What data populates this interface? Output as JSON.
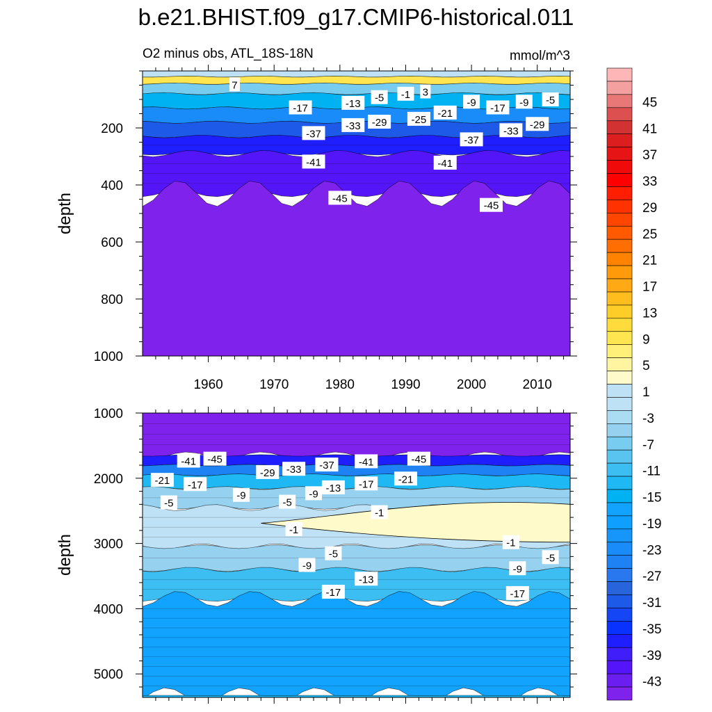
{
  "title": "b.e21.BHIST.f09_g17.CMIP6-historical.011",
  "chart_data": [
    {
      "type": "contour",
      "panel": "top",
      "subtitle_left": "O2 minus obs, ATL_18S-18N",
      "subtitle_right": "mmol/m^3",
      "ylabel": "depth",
      "xlim": [
        1950,
        2015
      ],
      "ylim": [
        0,
        1000
      ],
      "y_inverted": true,
      "x_ticks": [
        1960,
        1970,
        1980,
        1990,
        2000,
        2010
      ],
      "y_ticks": [
        200,
        400,
        600,
        800,
        1000
      ],
      "bands": [
        {
          "top": 0,
          "bottom": 20,
          "value": -3
        },
        {
          "top": 20,
          "bottom": 45,
          "value": 7
        },
        {
          "top": 45,
          "bottom": 80,
          "value": -9
        },
        {
          "top": 80,
          "bottom": 130,
          "value": -17
        },
        {
          "top": 130,
          "bottom": 180,
          "value": -25
        },
        {
          "top": 180,
          "bottom": 230,
          "value": -33
        },
        {
          "top": 230,
          "bottom": 290,
          "value": -39
        },
        {
          "top": 290,
          "bottom": 430,
          "value": -43
        },
        {
          "top": 430,
          "bottom": 1000,
          "value": -47
        }
      ],
      "contour_labels": [
        {
          "text": "7",
          "x": 1964,
          "y": 47
        },
        {
          "text": "-17",
          "x": 1974,
          "y": 128
        },
        {
          "text": "-13",
          "x": 1982,
          "y": 112
        },
        {
          "text": "-5",
          "x": 1986,
          "y": 92
        },
        {
          "text": "-1",
          "x": 1990,
          "y": 80
        },
        {
          "text": "3",
          "x": 1993,
          "y": 72
        },
        {
          "text": "-9",
          "x": 2000,
          "y": 108
        },
        {
          "text": "-17",
          "x": 2004,
          "y": 128
        },
        {
          "text": "-9",
          "x": 2008,
          "y": 108
        },
        {
          "text": "-5",
          "x": 2012,
          "y": 100
        },
        {
          "text": "-21",
          "x": 1996,
          "y": 146
        },
        {
          "text": "-25",
          "x": 1992,
          "y": 168
        },
        {
          "text": "-29",
          "x": 1986,
          "y": 178
        },
        {
          "text": "-33",
          "x": 1982,
          "y": 190
        },
        {
          "text": "-37",
          "x": 1976,
          "y": 218
        },
        {
          "text": "-29",
          "x": 2010,
          "y": 186
        },
        {
          "text": "-33",
          "x": 2006,
          "y": 208
        },
        {
          "text": "-37",
          "x": 2000,
          "y": 240
        },
        {
          "text": "-41",
          "x": 1976,
          "y": 318
        },
        {
          "text": "-41",
          "x": 1996,
          "y": 322
        },
        {
          "text": "-45",
          "x": 1980,
          "y": 445
        },
        {
          "text": "-45",
          "x": 2003,
          "y": 470
        }
      ]
    },
    {
      "type": "contour",
      "panel": "bottom",
      "ylabel": "depth",
      "xlim": [
        1950,
        2015
      ],
      "ylim": [
        1000,
        5360
      ],
      "y_inverted": true,
      "y_ticks": [
        1000,
        2000,
        3000,
        4000,
        5000
      ],
      "bands": [
        {
          "top": 1000,
          "bottom": 1650,
          "value": -47
        },
        {
          "top": 1650,
          "bottom": 1800,
          "value": -39
        },
        {
          "top": 1800,
          "bottom": 1950,
          "value": -27
        },
        {
          "top": 1950,
          "bottom": 2150,
          "value": -15
        },
        {
          "top": 2150,
          "bottom": 2450,
          "value": -7
        },
        {
          "top": 2450,
          "bottom": 3050,
          "value": -3
        },
        {
          "top": 3050,
          "bottom": 3400,
          "value": -7
        },
        {
          "top": 3400,
          "bottom": 3850,
          "value": -13
        },
        {
          "top": 3850,
          "bottom": 5330,
          "value": -19
        },
        {
          "top": 5330,
          "bottom": 5360,
          "value": -15
        }
      ],
      "positive_tongue": {
        "value": 1,
        "from_x": 1968,
        "to_x": 2015,
        "top": 2400,
        "bottom": 2980
      },
      "contour_labels": [
        {
          "text": "-41",
          "x": 1957,
          "y": 1730
        },
        {
          "text": "-45",
          "x": 1961,
          "y": 1700
        },
        {
          "text": "-29",
          "x": 1969,
          "y": 1905
        },
        {
          "text": "-33",
          "x": 1973,
          "y": 1855
        },
        {
          "text": "-37",
          "x": 1978,
          "y": 1790
        },
        {
          "text": "-41",
          "x": 1984,
          "y": 1740
        },
        {
          "text": "-45",
          "x": 1992,
          "y": 1700
        },
        {
          "text": "-21",
          "x": 1953,
          "y": 2025
        },
        {
          "text": "-17",
          "x": 1958,
          "y": 2090
        },
        {
          "text": "-9",
          "x": 1965,
          "y": 2255
        },
        {
          "text": "-5",
          "x": 1954,
          "y": 2370
        },
        {
          "text": "-5",
          "x": 1972,
          "y": 2360
        },
        {
          "text": "-9",
          "x": 1976,
          "y": 2230
        },
        {
          "text": "-13",
          "x": 1979,
          "y": 2140
        },
        {
          "text": "-17",
          "x": 1984,
          "y": 2080
        },
        {
          "text": "-21",
          "x": 1990,
          "y": 2005
        },
        {
          "text": "-1",
          "x": 1986,
          "y": 2520
        },
        {
          "text": "-1",
          "x": 1973,
          "y": 2780
        },
        {
          "text": "-1",
          "x": 2006,
          "y": 2980
        },
        {
          "text": "-5",
          "x": 1979,
          "y": 3150
        },
        {
          "text": "-9",
          "x": 1975,
          "y": 3330
        },
        {
          "text": "-13",
          "x": 1984,
          "y": 3540
        },
        {
          "text": "-17",
          "x": 1979,
          "y": 3740
        },
        {
          "text": "-5",
          "x": 2012,
          "y": 3210
        },
        {
          "text": "-9",
          "x": 2007,
          "y": 3380
        },
        {
          "text": "-17",
          "x": 2007,
          "y": 3760
        }
      ]
    }
  ],
  "colorbar": {
    "levels": [
      -47,
      -45,
      -43,
      -41,
      -39,
      -37,
      -35,
      -33,
      -31,
      -29,
      -27,
      -25,
      -23,
      -21,
      -19,
      -17,
      -15,
      -13,
      -11,
      -9,
      -7,
      -5,
      -3,
      -1,
      1,
      3,
      5,
      7,
      9,
      11,
      13,
      15,
      17,
      19,
      21,
      23,
      25,
      27,
      29,
      31,
      33,
      35,
      37,
      39,
      41,
      43,
      45,
      47
    ],
    "tick_labels": [
      "-43",
      "-39",
      "-35",
      "-31",
      "-27",
      "-23",
      "-19",
      "-15",
      "-11",
      "-7",
      "-3",
      "1",
      "5",
      "9",
      "13",
      "17",
      "21",
      "25",
      "29",
      "33",
      "37",
      "41",
      "45"
    ],
    "colors": {
      "-47": "#7f22ec",
      "-45": "#6a1ff0",
      "-43": "#5416f8",
      "-41": "#3f1efa",
      "-39": "#1e1eff",
      "-37": "#0a32ff",
      "-35": "#1446f5",
      "-33": "#1e5ae8",
      "-31": "#2864dc",
      "-29": "#2a78f0",
      "-27": "#1e82f5",
      "-25": "#1a8cfa",
      "-23": "#1696fa",
      "-21": "#0fa0ff",
      "-19": "#11a3ff",
      "-17": "#00b2f2",
      "-15": "#1eb9f5",
      "-13": "#3cbef2",
      "-11": "#5ac4f0",
      "-9": "#78ccf0",
      "-7": "#96d2f0",
      "-5": "#aadcf2",
      "-3": "#bee1f5",
      "-1": "#bee1f5",
      "1": "#fffaca",
      "3": "#fff5a0",
      "5": "#fff07a",
      "7": "#ffe650",
      "9": "#ffdc3c",
      "11": "#ffcd28",
      "13": "#ffbe1e",
      "15": "#ffaa14",
      "17": "#ff9a0a",
      "19": "#ff8200",
      "21": "#ff6e00",
      "23": "#ff5a00",
      "25": "#ff4600",
      "27": "#ff3200",
      "29": "#ff1e00",
      "31": "#ff0000",
      "33": "#f00a0a",
      "35": "#e61414",
      "37": "#dc1e1e",
      "39": "#d23232",
      "41": "#dc5050",
      "43": "#e87878",
      "45": "#f5a0a0",
      "47": "#ffb6b6"
    }
  }
}
